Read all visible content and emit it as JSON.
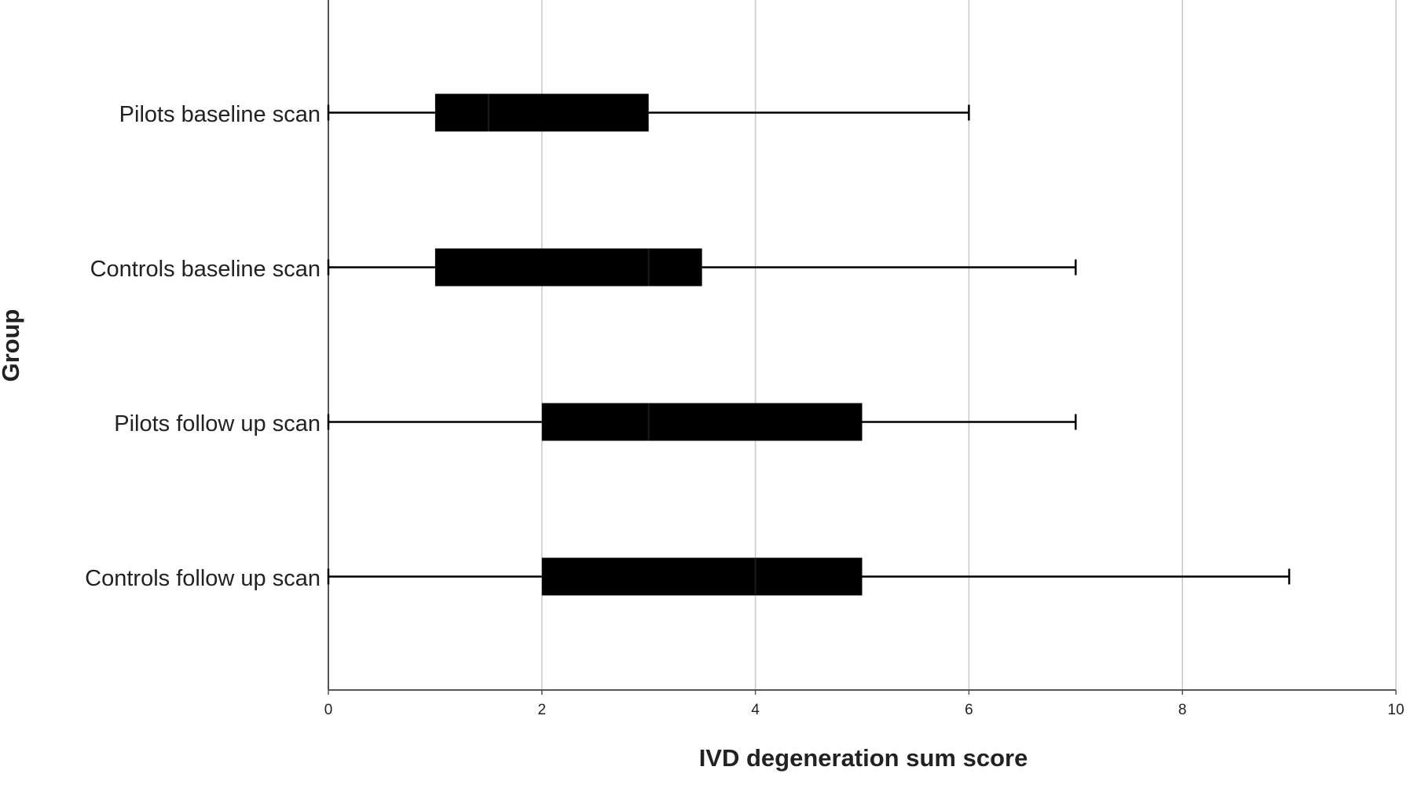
{
  "chart_data": {
    "type": "boxplot",
    "x_label": "IVD degeneration sum score",
    "y_label": "Group",
    "categories": [
      "Pilots baseline scan",
      "Controls baseline scan",
      "Pilots follow up scan",
      "Controls follow up scan"
    ],
    "min": [
      0,
      0,
      0,
      0
    ],
    "q1": [
      1,
      1,
      2,
      2
    ],
    "median": [
      1.5,
      3,
      3,
      4
    ],
    "q3": [
      3,
      3.5,
      5,
      5
    ],
    "max": [
      6,
      7,
      7,
      9
    ],
    "color": "#000000",
    "xlim": [
      0,
      10
    ],
    "xticks": [
      0,
      2,
      4,
      6,
      8,
      10
    ],
    "grid": true
  }
}
